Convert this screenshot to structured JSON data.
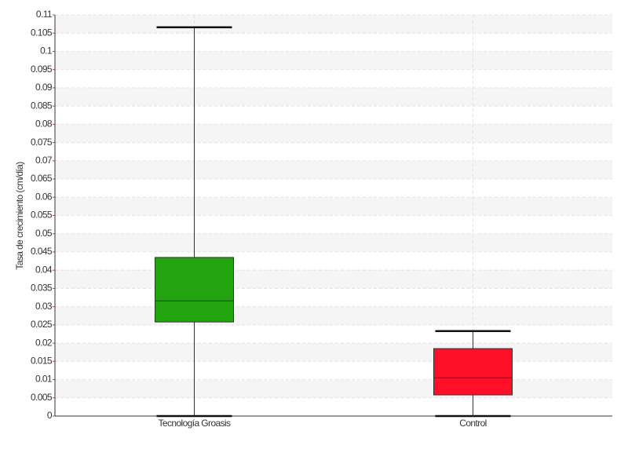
{
  "chart_data": {
    "type": "boxplot",
    "y_label": "Tasa de crecimiento (cm/día)",
    "categories": [
      "Tecnología Groasis",
      "Control"
    ],
    "boxes": [
      {
        "min": 0,
        "q1": 0.0258,
        "median": 0.0316,
        "q3": 0.0435,
        "max": 0.1066,
        "color": "#22a40e"
      },
      {
        "min": 0,
        "q1": 0.0058,
        "median": 0.0105,
        "q3": 0.0185,
        "max": 0.0233,
        "color": "#ff0f28"
      }
    ],
    "ylim": [
      0,
      0.11
    ],
    "yticks": [
      0,
      0.005,
      0.01,
      0.015,
      0.02,
      0.025,
      0.03,
      0.035,
      0.04,
      0.045,
      0.05,
      0.055,
      0.06,
      0.065,
      0.07,
      0.075,
      0.08,
      0.085,
      0.09,
      0.095,
      0.1,
      0.105,
      0.11
    ],
    "grid": true
  }
}
